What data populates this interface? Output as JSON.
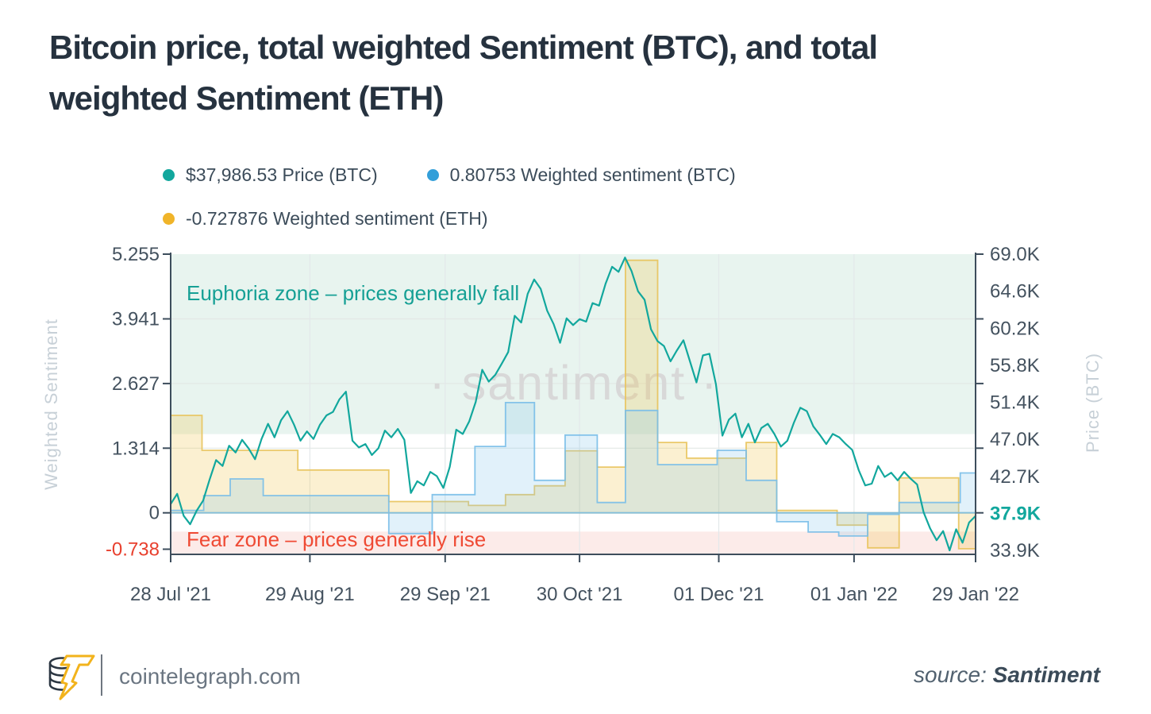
{
  "title_lines": [
    "Bitcoin price, total weighted Sentiment (BTC), and total",
    "weighted Sentiment (ETH)"
  ],
  "legend": {
    "items": [
      {
        "label": "$37,986.53 Price (BTC)",
        "color": "#12A79D"
      },
      {
        "label": "0.80753 Weighted sentiment (BTC)",
        "color": "#339FD9"
      },
      {
        "label": "-0.727876 Weighted sentiment (ETH)",
        "color": "#F0B429"
      }
    ]
  },
  "watermark": "· santiment ·",
  "footer": {
    "site": "cointelegraph.com",
    "source_label": "source:",
    "source_name": "Santiment"
  },
  "chart_data": {
    "type": "line+step-area",
    "title": "Bitcoin price, total weighted Sentiment (BTC), and total weighted Sentiment (ETH)",
    "grid": true,
    "legend_position": "top",
    "x": {
      "ticks": [
        {
          "label": "28 Jul '21",
          "t": 0.0
        },
        {
          "label": "29 Aug '21",
          "t": 0.173
        },
        {
          "label": "29 Sep '21",
          "t": 0.341
        },
        {
          "label": "30 Oct '21",
          "t": 0.508
        },
        {
          "label": "01 Dec '21",
          "t": 0.681
        },
        {
          "label": "01 Jan '22",
          "t": 0.849
        },
        {
          "label": "29 Jan '22",
          "t": 1.0
        }
      ]
    },
    "y_left": {
      "label": "Weighted Sentiment",
      "range": [
        -0.843,
        5.255
      ],
      "ticks": [
        {
          "label": "5.255",
          "v": 5.255
        },
        {
          "label": "3.941",
          "v": 3.941
        },
        {
          "label": "2.627",
          "v": 2.627
        },
        {
          "label": "1.314",
          "v": 1.314
        },
        {
          "label": "0",
          "v": 0
        },
        {
          "label": "-0.738",
          "v": -0.738,
          "negative": true
        }
      ],
      "grid_values": [
        3.941,
        2.627,
        1.314,
        0
      ],
      "frame_tick_values": [
        5.255,
        3.941,
        2.627,
        1.314,
        0
      ]
    },
    "y_right": {
      "label": "Price (BTC)",
      "range": [
        33.9,
        69.0
      ],
      "unit": "thousand USD",
      "ticks": [
        "69.0K",
        "64.6K",
        "60.2K",
        "55.8K",
        "51.4K",
        "47.0K",
        "42.7K",
        "37.9K",
        "33.9K"
      ],
      "current_label": "37.9K"
    },
    "zones": [
      {
        "id": "euphoria-zone",
        "label": "Euphoria zone – prices generally fall",
        "v_from": 1.6,
        "v_to": 5.255,
        "fill": "#E8F4EF",
        "text_color": "#16A095"
      },
      {
        "id": "fear-zone",
        "label": "Fear zone – prices generally rise",
        "v_from": -0.843,
        "v_to": -0.38,
        "fill": "#FCEBE9",
        "text_color": "#EF4A34"
      }
    ],
    "series": [
      {
        "id": "weighted-sentiment-eth",
        "name": "Weighted sentiment (ETH)",
        "type": "step-area",
        "axis": "left",
        "color": "#E8C35B",
        "fill": "rgba(240,196,77,0.26)",
        "current_value": -0.727876,
        "segments": [
          [
            0.0,
            0.039,
            1.98
          ],
          [
            0.039,
            0.158,
            1.27
          ],
          [
            0.158,
            0.271,
            0.87
          ],
          [
            0.271,
            0.37,
            0.23
          ],
          [
            0.37,
            0.416,
            0.15
          ],
          [
            0.416,
            0.452,
            0.37
          ],
          [
            0.452,
            0.49,
            0.55
          ],
          [
            0.49,
            0.53,
            1.26
          ],
          [
            0.53,
            0.565,
            0.93
          ],
          [
            0.565,
            0.605,
            5.13
          ],
          [
            0.605,
            0.641,
            1.43
          ],
          [
            0.641,
            0.715,
            1.11
          ],
          [
            0.715,
            0.753,
            1.43
          ],
          [
            0.753,
            0.828,
            0.05
          ],
          [
            0.828,
            0.866,
            -0.25
          ],
          [
            0.866,
            0.905,
            -0.71
          ],
          [
            0.905,
            0.979,
            0.71
          ],
          [
            0.979,
            1.0,
            -0.728
          ]
        ]
      },
      {
        "id": "weighted-sentiment-btc",
        "name": "Weighted sentiment (BTC)",
        "type": "step-area",
        "axis": "left",
        "color": "#79BEE8",
        "fill": "rgba(137,199,235,0.25)",
        "current_value": 0.80753,
        "segments": [
          [
            0.0,
            0.041,
            0.05
          ],
          [
            0.041,
            0.074,
            0.35
          ],
          [
            0.074,
            0.115,
            0.69
          ],
          [
            0.115,
            0.271,
            0.35
          ],
          [
            0.271,
            0.325,
            -0.42
          ],
          [
            0.325,
            0.378,
            0.37
          ],
          [
            0.378,
            0.416,
            1.35
          ],
          [
            0.416,
            0.452,
            2.24
          ],
          [
            0.452,
            0.49,
            0.66
          ],
          [
            0.49,
            0.53,
            1.58
          ],
          [
            0.53,
            0.565,
            0.21
          ],
          [
            0.565,
            0.605,
            2.08
          ],
          [
            0.605,
            0.679,
            0.98
          ],
          [
            0.679,
            0.715,
            1.27
          ],
          [
            0.715,
            0.753,
            0.66
          ],
          [
            0.753,
            0.792,
            -0.18
          ],
          [
            0.792,
            0.83,
            -0.39
          ],
          [
            0.83,
            0.866,
            -0.47
          ],
          [
            0.866,
            0.905,
            -0.03
          ],
          [
            0.905,
            0.981,
            0.21
          ],
          [
            0.981,
            1.0,
            0.81
          ]
        ]
      },
      {
        "id": "btc-price",
        "name": "Price (BTC)",
        "type": "line",
        "axis": "right",
        "color": "#12A79D",
        "current_value": 37986.53,
        "values": [
          39.4,
          40.6,
          38.0,
          37.0,
          38.6,
          39.8,
          42.3,
          44.6,
          43.9,
          46.3,
          45.5,
          47.0,
          46.0,
          44.7,
          47.1,
          48.9,
          47.3,
          49.3,
          50.4,
          48.8,
          46.9,
          48.0,
          47.1,
          48.8,
          49.9,
          50.3,
          51.8,
          52.7,
          46.9,
          46.1,
          46.5,
          45.2,
          46.0,
          48.1,
          47.3,
          48.3,
          47.0,
          40.7,
          42.1,
          41.6,
          43.2,
          42.7,
          41.3,
          43.8,
          48.2,
          47.7,
          49.2,
          51.5,
          55.3,
          53.9,
          54.7,
          56.0,
          57.4,
          61.7,
          60.9,
          64.3,
          66.0,
          64.9,
          62.3,
          60.7,
          58.5,
          61.4,
          60.6,
          61.3,
          61.0,
          63.2,
          62.9,
          65.5,
          67.5,
          66.9,
          68.6,
          67.0,
          64.6,
          63.6,
          60.1,
          58.7,
          58.1,
          56.3,
          57.6,
          58.8,
          56.3,
          53.8,
          57.0,
          57.2,
          53.6,
          47.5,
          49.4,
          50.1,
          47.3,
          48.9,
          46.7,
          48.4,
          48.9,
          47.7,
          46.2,
          46.9,
          49.0,
          50.8,
          50.4,
          48.6,
          47.6,
          46.5,
          47.7,
          47.3,
          46.5,
          45.8,
          43.4,
          41.6,
          41.8,
          43.9,
          42.6,
          43.1,
          42.2,
          43.2,
          42.4,
          41.7,
          38.4,
          36.5,
          35.1,
          36.2,
          33.9,
          36.4,
          34.8,
          37.2,
          37.986
        ]
      }
    ]
  }
}
